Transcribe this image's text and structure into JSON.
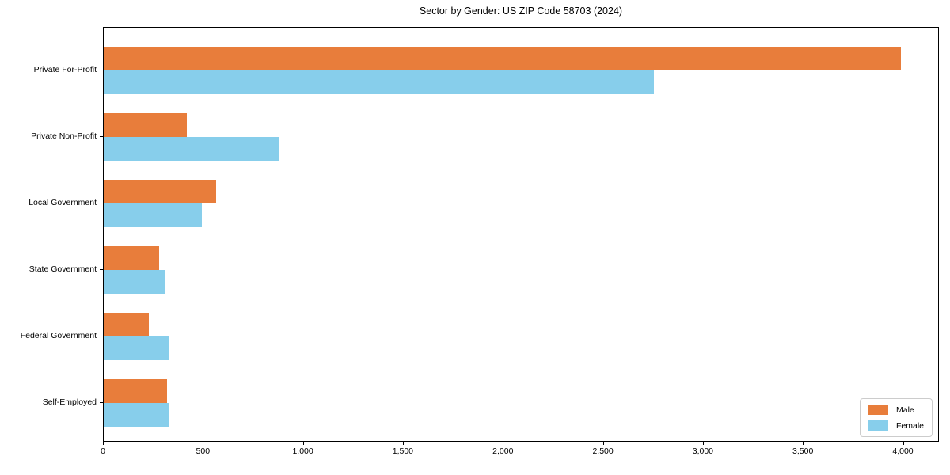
{
  "chart_data": {
    "type": "bar",
    "orientation": "horizontal",
    "title": "Sector by Gender: US ZIP Code 58703 (2024)",
    "categories": [
      "Private For-Profit",
      "Private Non-Profit",
      "Local Government",
      "State Government",
      "Federal Government",
      "Self-Employed"
    ],
    "series": [
      {
        "name": "Male",
        "color": "#e87d3b",
        "values": [
          3984,
          415,
          561,
          277,
          225,
          317
        ]
      },
      {
        "name": "Female",
        "color": "#87ceeb",
        "values": [
          2751,
          876,
          489,
          306,
          330,
          326
        ]
      }
    ],
    "xlabel": "",
    "ylabel": "",
    "xlim": [
      0,
      4180
    ],
    "x_ticks": [
      0,
      500,
      1000,
      1500,
      2000,
      2500,
      3000,
      3500,
      4000
    ],
    "x_tick_labels": [
      "0",
      "500",
      "1,000",
      "1,500",
      "2,000",
      "2,500",
      "3,000",
      "3,500",
      "4,000"
    ],
    "grid": false,
    "legend": {
      "position": "lower right",
      "entries": [
        "Male",
        "Female"
      ]
    },
    "colors": {
      "male": "#e87d3b",
      "female": "#87ceeb",
      "spine": "#000000",
      "legend_border": "#cccccc"
    }
  }
}
